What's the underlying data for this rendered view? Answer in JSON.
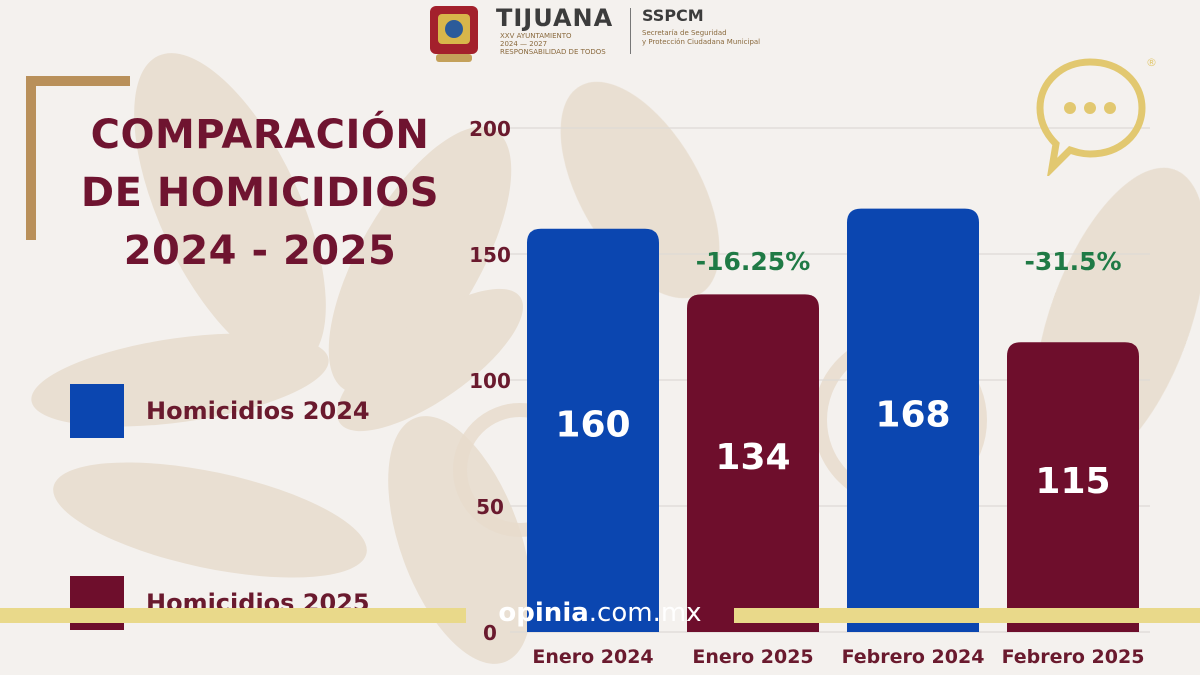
{
  "header": {
    "city": "TIJUANA",
    "city_sub": "XXV AYUNTAMIENTO",
    "city_years": "2024 — 2027",
    "city_motto": "RESPONSABILIDAD DE TODOS",
    "agency": "SSPCM",
    "agency_sub_1": "Secretaría de Seguridad",
    "agency_sub_2": "y Protección Ciudadana Municipal"
  },
  "title_lines": [
    "COMPARACIÓN",
    "DE HOMICIDIOS",
    "2024 - 2025"
  ],
  "legend": [
    {
      "label": "Homicidios 2024",
      "color": "#0b46b0"
    },
    {
      "label": "Homicidios 2025",
      "color": "#6e0e2c"
    }
  ],
  "watermark": {
    "brand": "opinia",
    "domain": ".com.mx"
  },
  "icons": {
    "chat": "speech-bubble-ellipsis-icon",
    "registered": "®"
  },
  "colors": {
    "gold": "#b9905a",
    "maroon": "#6e0e2c",
    "blue": "#0b46b0",
    "green": "#1f7a45",
    "watermark_bar": "#e9d98a"
  },
  "chart_data": {
    "type": "bar",
    "title": "COMPARACIÓN DE HOMICIDIOS 2024 - 2025",
    "categories": [
      "Enero 2024",
      "Enero 2025",
      "Febrero 2024",
      "Febrero 2025"
    ],
    "values": [
      160,
      134,
      168,
      115
    ],
    "value_labels": [
      "160",
      "134",
      "168",
      "115"
    ],
    "bar_series": [
      "Homicidios 2024",
      "Homicidios 2025",
      "Homicidios 2024",
      "Homicidios 2025"
    ],
    "annotations": [
      {
        "text": "-16.25%",
        "category": "Enero 2025"
      },
      {
        "text": "-31.5%",
        "category": "Febrero 2025"
      }
    ],
    "yticks": [
      0,
      50,
      100,
      150,
      200
    ],
    "ylim": [
      0,
      200
    ],
    "grid": true,
    "legend_position": "left"
  }
}
